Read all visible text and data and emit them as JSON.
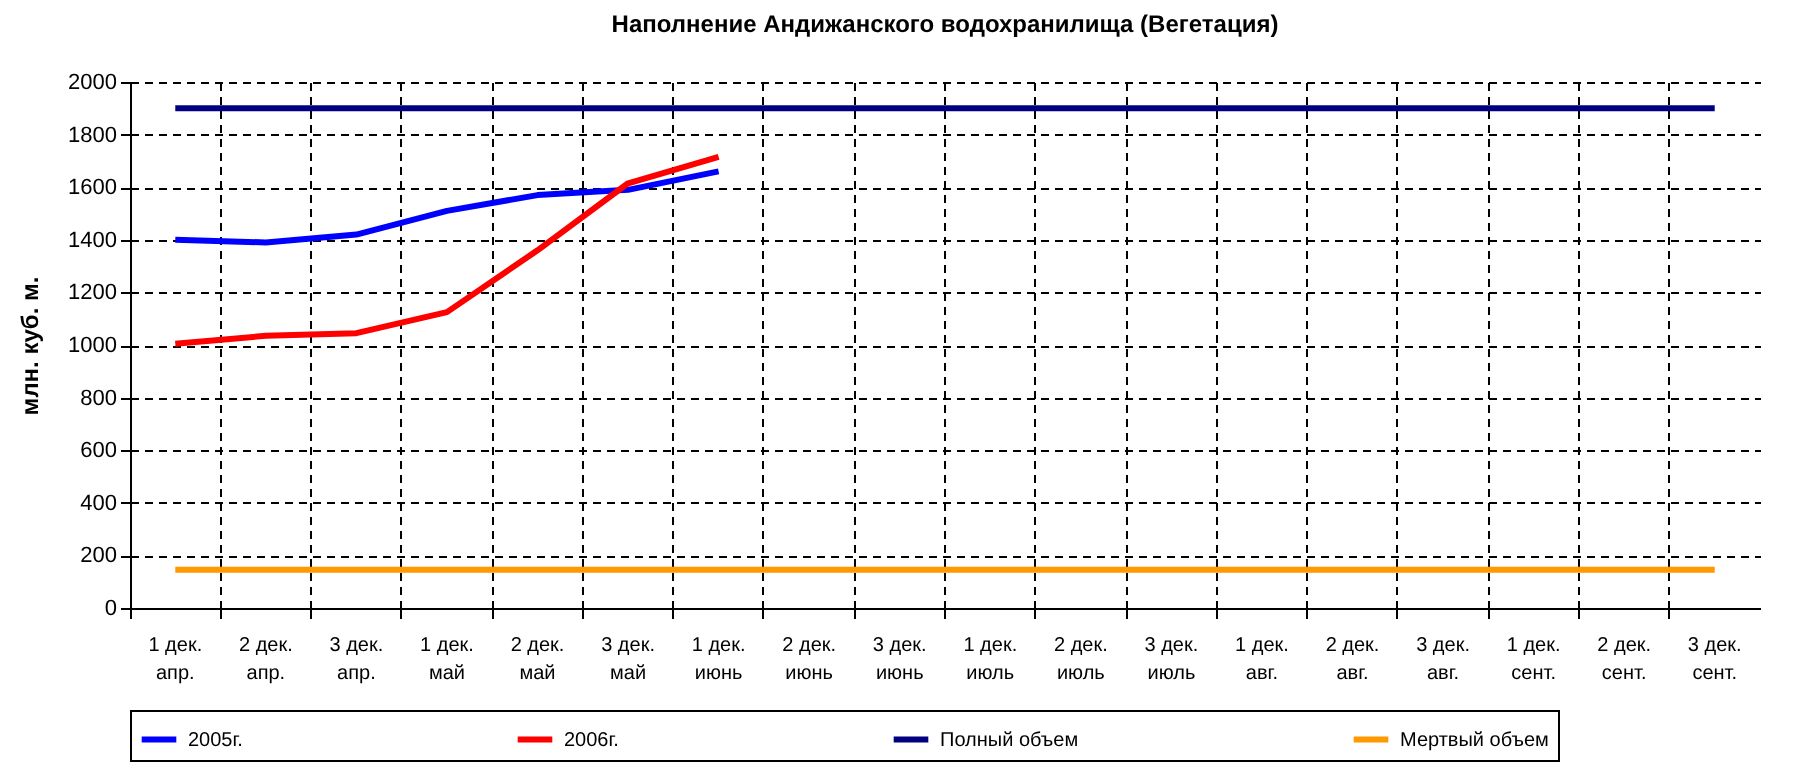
{
  "chart_data": {
    "type": "line",
    "title": "Наполнение Андижанского водохранилища (Вегетация)",
    "ylabel": "млн. куб. м.",
    "categories": [
      "1 дек.\nапр.",
      "2 дек.\nапр.",
      "3 дек.\nапр.",
      "1 дек.\nмай",
      "2 дек.\nмай",
      "3 дек.\nмай",
      "1 дек.\nиюнь",
      "2 дек.\nиюнь",
      "3 дек.\nиюнь",
      "1 дек.\nиюль",
      "2 дек.\nиюль",
      "3 дек.\nиюль",
      "1 дек.\nавг.",
      "2 дек.\nавг.",
      "3 дек.\nавг.",
      "1 дек.\nсент.",
      "2 дек.\nсент.",
      "3 дек.\nсент."
    ],
    "series": [
      {
        "name": "2005г.",
        "color": "#0000ff",
        "values": [
          1400,
          1390,
          1420,
          1510,
          1570,
          1590,
          1660,
          null,
          null,
          null,
          null,
          null,
          null,
          null,
          null,
          null,
          null,
          null
        ]
      },
      {
        "name": "2006г.",
        "color": "#ff0000",
        "values": [
          1005,
          1035,
          1045,
          1125,
          1360,
          1615,
          1715,
          null,
          null,
          null,
          null,
          null,
          null,
          null,
          null,
          null,
          null,
          null
        ]
      },
      {
        "name": "Полный объем",
        "color": "#000080",
        "values": [
          1900,
          1900,
          1900,
          1900,
          1900,
          1900,
          1900,
          1900,
          1900,
          1900,
          1900,
          1900,
          1900,
          1900,
          1900,
          1900,
          1900,
          1900
        ]
      },
      {
        "name": "Мертвый объем",
        "color": "#ff9900",
        "values": [
          145,
          145,
          145,
          145,
          145,
          145,
          145,
          145,
          145,
          145,
          145,
          145,
          145,
          145,
          145,
          145,
          145,
          145
        ]
      }
    ],
    "ylim": [
      0,
      2000
    ],
    "yticks": [
      0,
      200,
      400,
      600,
      800,
      1000,
      1200,
      1400,
      1600,
      1800,
      2000
    ],
    "grid": true,
    "legend": "bottom",
    "line_style": "solid",
    "marker": "none"
  }
}
